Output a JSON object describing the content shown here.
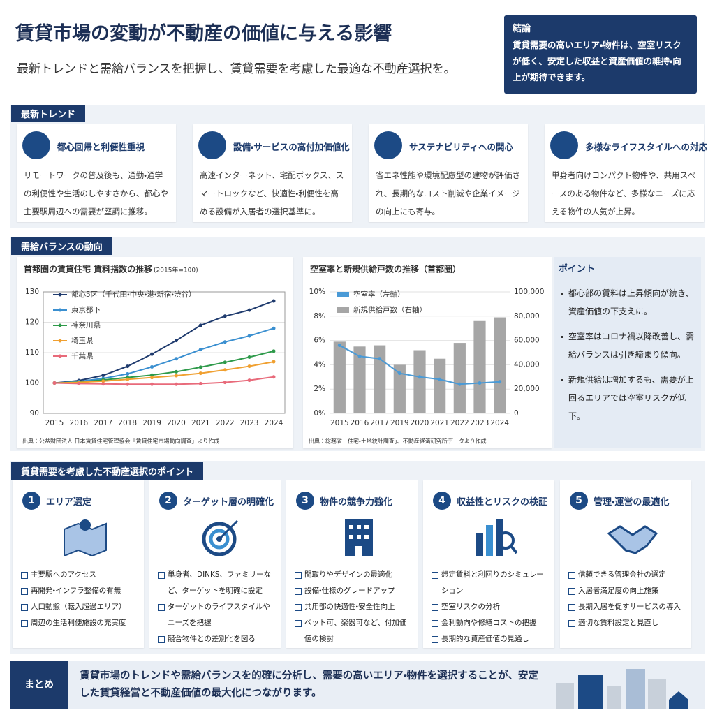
{
  "header": {
    "title": "賃貸市場の変動が不動産の価値に与える影響",
    "subtitle": "最新トレンドと需給バランスを把握し、賃貸需要を考慮した最適な不動産選択を。"
  },
  "conclusion": {
    "title": "結論",
    "text": "賃貸需要の高いエリア・物件は、空室リスクが低く、安定した収益と資産価値の維持・向上が期待できます。"
  },
  "trends": {
    "title": "最新トレンド",
    "items": [
      {
        "title": "都心回帰と利便性重視",
        "text": "リモートワークの普及後も、通勤・通学の利便性や生活のしやすさから、都心や主要駅周辺への需要が堅調に推移。"
      },
      {
        "title": "設備・サービスの高付加価値化",
        "text": "高速インターネット、宅配ボックス、スマートロックなど、快適性・利便性を高める設備が入居者の選択基準に。"
      },
      {
        "title": "サステナビリティへの関心",
        "text": "省エネ性能や環境配慮型の建物が評価され、長期的なコスト削減や企業イメージの向上にも寄与。"
      },
      {
        "title": "多様なライフスタイルへの対応",
        "text": "単身者向けコンパクト物件や、共用スペースのある物件など、多様なニーズに応える物件の人気が上昇。"
      }
    ]
  },
  "supply_demand": {
    "title": "需給バランスの動向",
    "points_title": "ポイント",
    "points": [
      "都心部の賃料は上昇傾向が続き、資産価値の下支えに。",
      "空室率はコロナ禍以降改善し、需給バランスは引き締まり傾向。",
      "新規供給は増加するも、需要が上回るエリアでは空室リスクが低下。"
    ]
  },
  "chart_data": [
    {
      "type": "line",
      "title": "首都圏の賃貸住宅 賃料指数の推移",
      "subtitle": "(2015年=100)",
      "categories": [
        "2015",
        "2016",
        "2017",
        "2018",
        "2019",
        "2020",
        "2021",
        "2022",
        "2023",
        "2024"
      ],
      "series": [
        {
          "name": "都心5区（千代田・中央・港・新宿・渋谷）",
          "color": "#1f3b6e",
          "values": [
            100,
            100.8,
            102.5,
            105.5,
            109.5,
            114,
            119,
            122,
            124,
            127
          ]
        },
        {
          "name": "東京都下",
          "color": "#3a8fd0",
          "values": [
            100,
            100.5,
            101.5,
            103,
            105.3,
            108,
            111,
            113.5,
            115.5,
            118
          ]
        },
        {
          "name": "神奈川県",
          "color": "#2e9a4a",
          "values": [
            100,
            100.3,
            101,
            101.8,
            102.6,
            103.7,
            105.2,
            106.8,
            108.5,
            110.5
          ]
        },
        {
          "name": "埼玉県",
          "color": "#f0a030",
          "values": [
            100,
            100.2,
            100.6,
            101.2,
            101.8,
            102.4,
            103.2,
            104.3,
            105.5,
            107
          ]
        },
        {
          "name": "千葉県",
          "color": "#e86a7a",
          "values": [
            100,
            99.8,
            99.7,
            99.6,
            99.6,
            99.6,
            99.8,
            100.2,
            100.9,
            102
          ]
        }
      ],
      "ylim": [
        90,
        130
      ],
      "yticks": [
        90,
        100,
        110,
        120,
        130
      ],
      "grid": true,
      "legend": "upper-left",
      "source": "出典：公益財団法人 日本賃貸住宅管理協会「賃貸住宅市場動向調査」より作成"
    },
    {
      "type": "bar-line",
      "title": "空室率と新規供給戸数の推移（首都圏）",
      "categories": [
        "2015",
        "2016",
        "2017",
        "2019",
        "2020",
        "2021",
        "2022",
        "2023",
        "2024"
      ],
      "series": [
        {
          "name": "空室率（左軸）",
          "type": "line",
          "color": "#4a9ad6",
          "values": [
            5.6,
            4.7,
            4.5,
            3.3,
            3.0,
            2.8,
            2.4,
            2.5,
            2.6
          ]
        },
        {
          "name": "新規供給戸数（右軸）",
          "type": "bar",
          "axis": "y2",
          "color": "#a6a6a6",
          "values": [
            59000,
            55000,
            56000,
            40000,
            52000,
            45000,
            58000,
            76000,
            79000
          ]
        }
      ],
      "ylim": [
        0,
        10
      ],
      "yticks": [
        {
          "value": 0,
          "label": "0%"
        },
        {
          "value": 2,
          "label": "2%"
        },
        {
          "value": 4,
          "label": "4%"
        },
        {
          "value": 6,
          "label": "6%"
        },
        {
          "value": 8,
          "label": "8%"
        },
        {
          "value": 10,
          "label": "10%"
        }
      ],
      "y2lim": [
        0,
        100000
      ],
      "y2ticks": [
        0,
        {
          "value": 20000,
          "label": "20,000"
        },
        {
          "value": 40000,
          "label": "40,000"
        },
        {
          "value": 60000,
          "label": "60,000"
        },
        {
          "value": 80000,
          "label": "80,000"
        },
        {
          "value": 100000,
          "label": "100,000"
        }
      ],
      "grid": true,
      "legend": "upper-left",
      "source": "出典：総務省「住宅・土地統計調査」、不動産経済研究所データより作成"
    }
  ],
  "selection": {
    "title": "賃貸需要を考慮した不動産選択のポイント",
    "items": [
      {
        "number": 1,
        "title": "エリア選定",
        "checks": [
          "主要駅へのアクセス",
          "再開発・インフラ整備の有無",
          "人口動態（転入超過エリア）",
          "周辺の生活利便施設の充実度"
        ]
      },
      {
        "number": 2,
        "title": "ターゲット層の明確化",
        "checks": [
          "単身者、DINKS、ファミリーなど、ターゲットを明確に設定",
          "ターゲットのライフスタイルやニーズを把握",
          "競合物件との差別化を図る"
        ]
      },
      {
        "number": 3,
        "title": "物件の競争力強化",
        "checks": [
          "間取りやデザインの最適化",
          "設備・仕様のグレードアップ",
          "共用部の快適性・安全性向上",
          "ペット可、楽器可など、付加価値の検討"
        ]
      },
      {
        "number": 4,
        "title": "収益性とリスクの検証",
        "checks": [
          "想定賃料と利回りのシミュレーション",
          "空室リスクの分析",
          "金利動向や修繕コストの把握",
          "長期的な資産価値の見通し"
        ]
      },
      {
        "number": 5,
        "title": "管理・運営の最適化",
        "checks": [
          "信頼できる管理会社の選定",
          "入居者満足度の向上施策",
          "長期入居を促すサービスの導入",
          "適切な賃料設定と見直し"
        ]
      }
    ]
  },
  "summary": {
    "label": "まとめ",
    "text": "賃貸市場のトレンドや需給バランスを的確に分析し、需要の高いエリア・物件を選択することが、安定した賃貸経営と不動産価値の最大化につながります。"
  }
}
